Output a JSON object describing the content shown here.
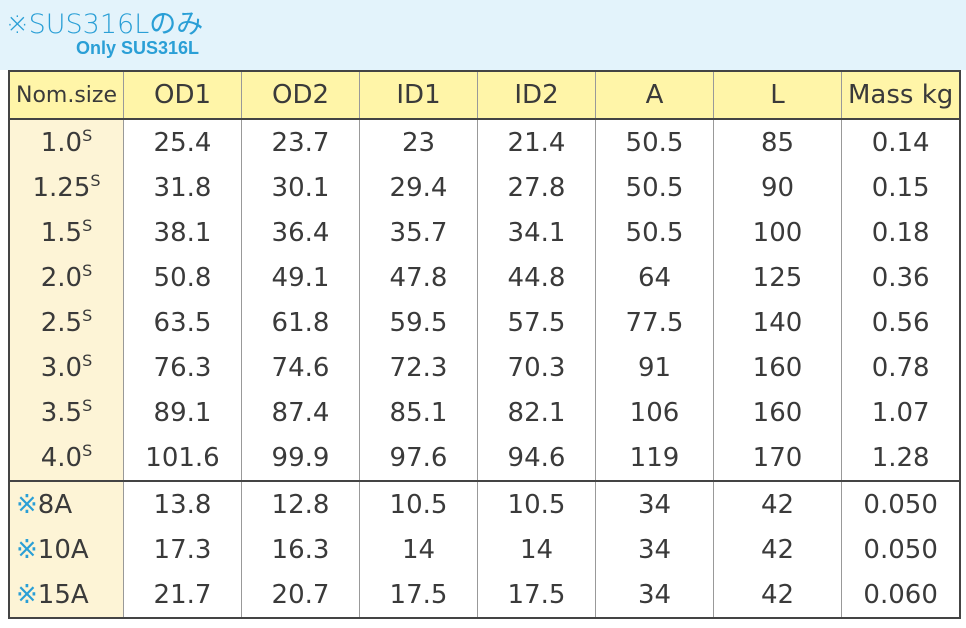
{
  "header": {
    "title": "※SUS316Lのみ",
    "subtitle": "Only SUS316L"
  },
  "table": {
    "headers": [
      "Nom.size",
      "OD1",
      "OD2",
      "ID1",
      "ID2",
      "A",
      "L",
      "Mass kg"
    ],
    "rows": [
      [
        {
          "text": "1.0",
          "sup": "S"
        },
        "25.4",
        "23.7",
        "23",
        "21.4",
        "50.5",
        "85",
        "0.14"
      ],
      [
        {
          "text": "1.25",
          "sup": "S"
        },
        "31.8",
        "30.1",
        "29.4",
        "27.8",
        "50.5",
        "90",
        "0.15"
      ],
      [
        {
          "text": "1.5",
          "sup": "S"
        },
        "38.1",
        "36.4",
        "35.7",
        "34.1",
        "50.5",
        "100",
        "0.18"
      ],
      [
        {
          "text": "2.0",
          "sup": "S"
        },
        "50.8",
        "49.1",
        "47.8",
        "44.8",
        "64",
        "125",
        "0.36"
      ],
      [
        {
          "text": "2.5",
          "sup": "S"
        },
        "63.5",
        "61.8",
        "59.5",
        "57.5",
        "77.5",
        "140",
        "0.56"
      ],
      [
        {
          "text": "3.0",
          "sup": "S"
        },
        "76.3",
        "74.6",
        "72.3",
        "70.3",
        "91",
        "160",
        "0.78"
      ],
      [
        {
          "text": "3.5",
          "sup": "S"
        },
        "89.1",
        "87.4",
        "85.1",
        "82.1",
        "106",
        "160",
        "1.07"
      ],
      [
        {
          "text": "4.0",
          "sup": "S"
        },
        "101.6",
        "99.9",
        "97.6",
        "94.6",
        "119",
        "170",
        "1.28"
      ],
      [
        {
          "mark": "※",
          "text": "8A"
        },
        "13.8",
        "12.8",
        "10.5",
        "10.5",
        "34",
        "42",
        "0.050"
      ],
      [
        {
          "mark": "※",
          "text": "10A"
        },
        "17.3",
        "16.3",
        "14",
        "14",
        "34",
        "42",
        "0.050"
      ],
      [
        {
          "mark": "※",
          "text": "15A"
        },
        "21.7",
        "20.7",
        "17.5",
        "17.5",
        "34",
        "42",
        "0.060"
      ]
    ]
  }
}
